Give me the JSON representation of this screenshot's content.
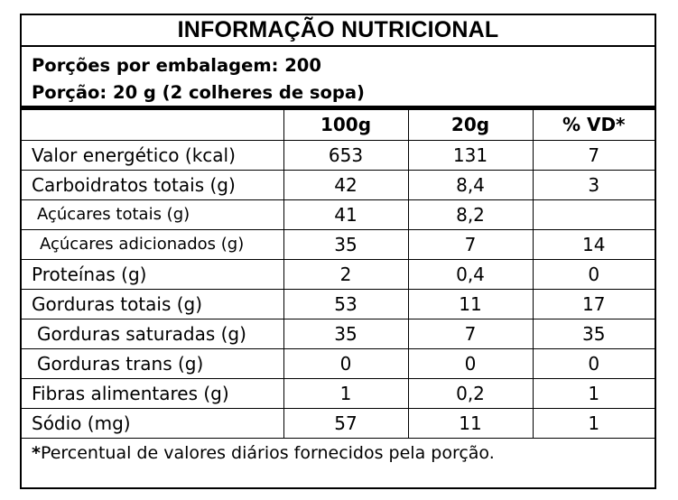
{
  "title": "INFORMAÇÃO NUTRICIONAL",
  "serving": {
    "per_package": "Porções por embalagem: 200",
    "portion": "Porção: 20 g (2 colheres de sopa)"
  },
  "columns": [
    "100g",
    "20g",
    "% VD*"
  ],
  "rows": [
    {
      "label": "Valor energético (kcal)",
      "v100": "653",
      "v20": "131",
      "vd": "7",
      "level": 0
    },
    {
      "label": "Carboidratos totais (g)",
      "v100": "42",
      "v20": "8,4",
      "vd": "3",
      "level": 0
    },
    {
      "label": "Açúcares totais (g)",
      "v100": "41",
      "v20": "8,2",
      "vd": "",
      "level": 1
    },
    {
      "label": "Açúcares adicionados (g)",
      "v100": "35",
      "v20": "7",
      "vd": "14",
      "level": 2
    },
    {
      "label": "Proteínas (g)",
      "v100": "2",
      "v20": "0,4",
      "vd": "0",
      "level": 0
    },
    {
      "label": "Gorduras totais (g)",
      "v100": "53",
      "v20": "11",
      "vd": "17",
      "level": 0
    },
    {
      "label": "Gorduras saturadas (g)",
      "v100": "35",
      "v20": "7",
      "vd": "35",
      "level": 3
    },
    {
      "label": "Gorduras trans (g)",
      "v100": "0",
      "v20": "0",
      "vd": "0",
      "level": 3
    },
    {
      "label": "Fibras alimentares (g)",
      "v100": "1",
      "v20": "0,2",
      "vd": "1",
      "level": 0
    },
    {
      "label": "Sódio (mg)",
      "v100": "57",
      "v20": "11",
      "vd": "1",
      "level": 0
    }
  ],
  "footnote": {
    "marker": "*",
    "text": "Percentual de valores diários fornecidos pela porção."
  }
}
